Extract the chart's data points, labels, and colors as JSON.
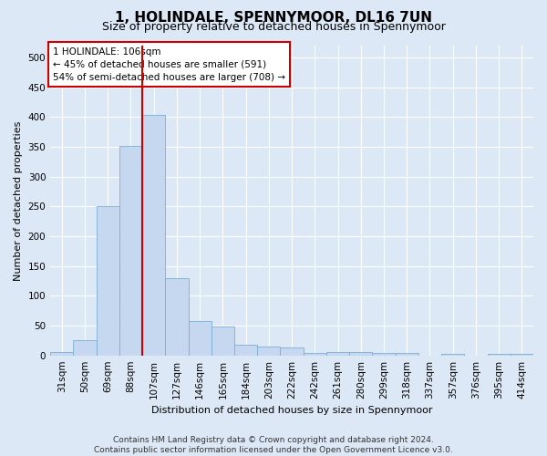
{
  "title": "1, HOLINDALE, SPENNYMOOR, DL16 7UN",
  "subtitle": "Size of property relative to detached houses in Spennymoor",
  "xlabel": "Distribution of detached houses by size in Spennymoor",
  "ylabel": "Number of detached properties",
  "footer_line1": "Contains HM Land Registry data © Crown copyright and database right 2024.",
  "footer_line2": "Contains public sector information licensed under the Open Government Licence v3.0.",
  "categories": [
    "31sqm",
    "50sqm",
    "69sqm",
    "88sqm",
    "107sqm",
    "127sqm",
    "146sqm",
    "165sqm",
    "184sqm",
    "203sqm",
    "222sqm",
    "242sqm",
    "261sqm",
    "280sqm",
    "299sqm",
    "318sqm",
    "337sqm",
    "357sqm",
    "376sqm",
    "395sqm",
    "414sqm"
  ],
  "values": [
    5,
    25,
    250,
    352,
    403,
    130,
    58,
    48,
    18,
    15,
    13,
    4,
    5,
    6,
    4,
    4,
    0,
    2,
    0,
    2,
    3
  ],
  "bar_color": "#c5d8ef",
  "bar_edge_color": "#7aafd4",
  "vline_color": "#cc0000",
  "vline_x_index": 4,
  "annotation_text": "1 HOLINDALE: 106sqm\n← 45% of detached houses are smaller (591)\n54% of semi-detached houses are larger (708) →",
  "annotation_box_color": "white",
  "annotation_box_edge_color": "#cc0000",
  "ylim": [
    0,
    520
  ],
  "yticks": [
    0,
    50,
    100,
    150,
    200,
    250,
    300,
    350,
    400,
    450,
    500
  ],
  "background_color": "#dce8f5",
  "grid_color": "white",
  "title_fontsize": 11,
  "subtitle_fontsize": 9,
  "axis_label_fontsize": 8,
  "tick_fontsize": 7.5,
  "annotation_fontsize": 7.5,
  "footer_fontsize": 6.5
}
